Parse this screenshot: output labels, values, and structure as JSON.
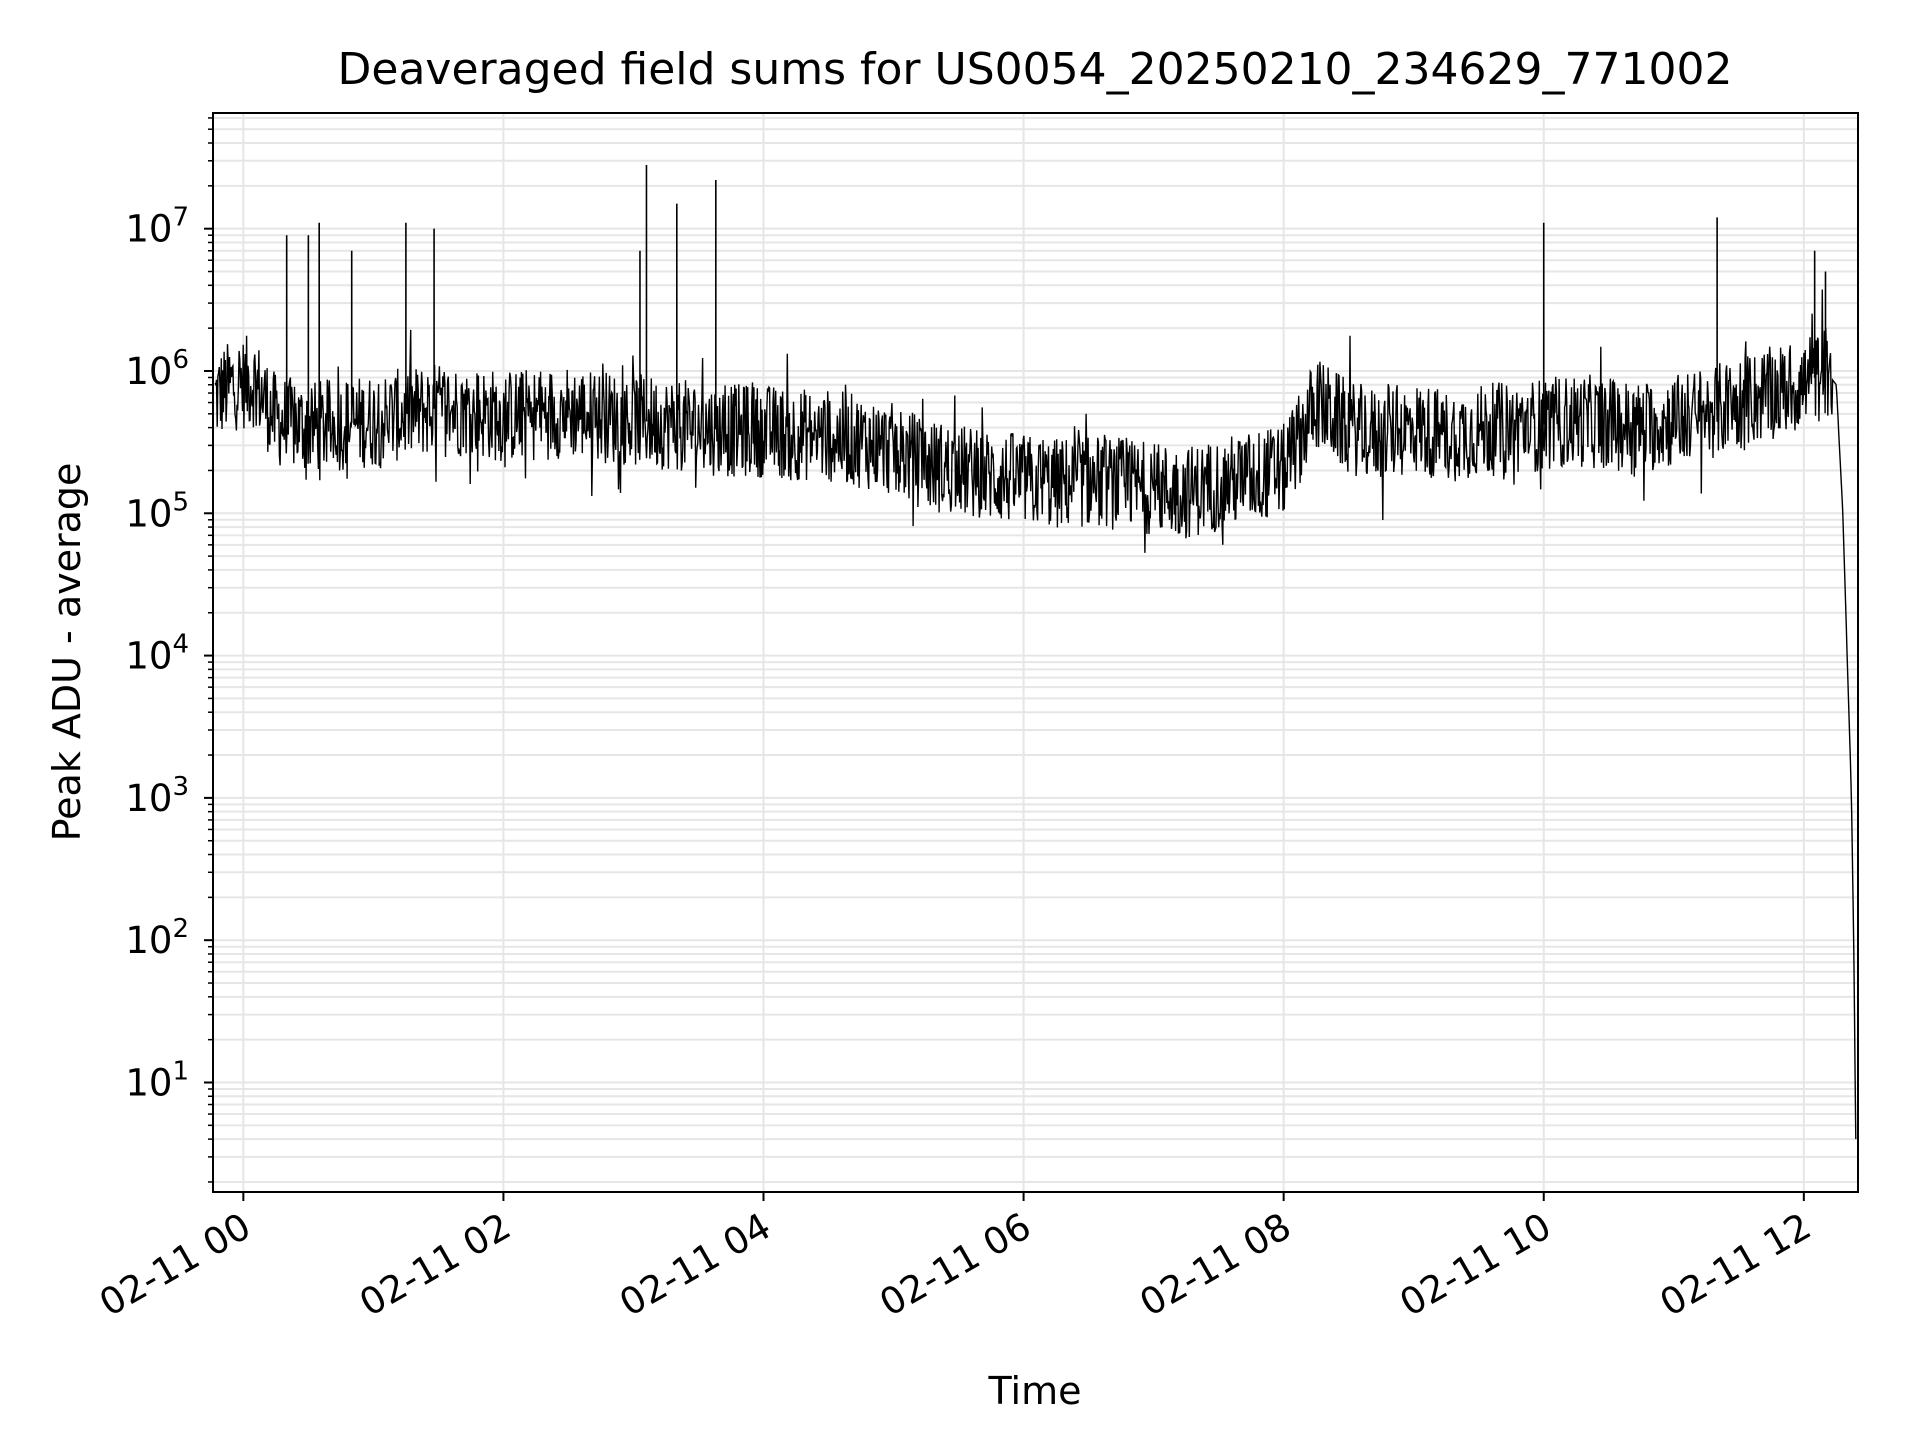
{
  "chart_data": {
    "type": "line",
    "title": "Deaveraged field sums for US0054_20250210_234629_771002",
    "xlabel": "Time",
    "ylabel": "Peak ADU - average",
    "x_type": "time",
    "xlim": [
      "2025-02-10 23:46",
      "2025-02-11 12:25"
    ],
    "ylim": [
      1.7,
      65000000
    ],
    "y_scale": "log",
    "grid": true,
    "grid_minor": true,
    "line_color": "#000000",
    "grid_color": "#e6e6e6",
    "x_ticks": [
      {
        "t": "2025-02-11 00:00",
        "label": "02-11 00"
      },
      {
        "t": "2025-02-11 02:00",
        "label": "02-11 02"
      },
      {
        "t": "2025-02-11 04:00",
        "label": "02-11 04"
      },
      {
        "t": "2025-02-11 06:00",
        "label": "02-11 06"
      },
      {
        "t": "2025-02-11 08:00",
        "label": "02-11 08"
      },
      {
        "t": "2025-02-11 10:00",
        "label": "02-11 10"
      },
      {
        "t": "2025-02-11 12:00",
        "label": "02-11 12"
      }
    ],
    "y_ticks": [
      {
        "v": 10,
        "base": "10",
        "exp": "1"
      },
      {
        "v": 100,
        "base": "10",
        "exp": "2"
      },
      {
        "v": 1000,
        "base": "10",
        "exp": "3"
      },
      {
        "v": 10000,
        "base": "10",
        "exp": "4"
      },
      {
        "v": 100000,
        "base": "10",
        "exp": "5"
      },
      {
        "v": 1000000,
        "base": "10",
        "exp": "6"
      },
      {
        "v": 10000000,
        "base": "10",
        "exp": "7"
      }
    ],
    "series": [
      {
        "x": [
          "2025-02-10 23:47",
          "2025-02-10 23:55",
          "2025-02-11 00:05",
          "2025-02-11 00:15",
          "2025-02-11 00:30",
          "2025-02-11 00:45",
          "2025-02-11 01:00",
          "2025-02-11 01:15",
          "2025-02-11 01:30",
          "2025-02-11 01:45",
          "2025-02-11 02:00",
          "2025-02-11 02:15",
          "2025-02-11 02:30",
          "2025-02-11 02:45",
          "2025-02-11 03:00",
          "2025-02-11 03:15",
          "2025-02-11 03:30",
          "2025-02-11 03:45",
          "2025-02-11 04:00",
          "2025-02-11 04:15",
          "2025-02-11 04:30",
          "2025-02-11 04:45",
          "2025-02-11 05:00",
          "2025-02-11 05:15",
          "2025-02-11 05:30",
          "2025-02-11 05:45",
          "2025-02-11 06:00",
          "2025-02-11 06:15",
          "2025-02-11 06:30",
          "2025-02-11 06:45",
          "2025-02-11 07:00",
          "2025-02-11 07:15",
          "2025-02-11 07:30",
          "2025-02-11 07:45",
          "2025-02-11 08:00",
          "2025-02-11 08:15",
          "2025-02-11 08:30",
          "2025-02-11 08:45",
          "2025-02-11 09:00",
          "2025-02-11 09:15",
          "2025-02-11 09:30",
          "2025-02-11 09:45",
          "2025-02-11 10:00",
          "2025-02-11 10:15",
          "2025-02-11 10:30",
          "2025-02-11 10:45",
          "2025-02-11 11:00",
          "2025-02-11 11:15",
          "2025-02-11 11:30",
          "2025-02-11 11:45",
          "2025-02-11 12:00",
          "2025-02-11 12:10",
          "2025-02-11 12:15",
          "2025-02-11 12:18",
          "2025-02-11 12:20",
          "2025-02-11 12:22",
          "2025-02-11 12:23",
          "2025-02-11 12:24"
        ],
        "values": [
          650000,
          800000,
          850000,
          450000,
          400000,
          420000,
          450000,
          500000,
          550000,
          520000,
          480000,
          500000,
          520000,
          480000,
          450000,
          430000,
          400000,
          380000,
          380000,
          360000,
          350000,
          320000,
          280000,
          220000,
          200000,
          180000,
          170000,
          160000,
          170000,
          160000,
          150000,
          140000,
          160000,
          180000,
          200000,
          600000,
          400000,
          350000,
          400000,
          350000,
          380000,
          400000,
          420000,
          450000,
          430000,
          400000,
          450000,
          500000,
          600000,
          700000,
          800000,
          1000000,
          800000,
          100000,
          10000,
          1000,
          100,
          4
        ]
      }
    ],
    "spikes": [
      {
        "x": "2025-02-11 00:20",
        "y": 9000000
      },
      {
        "x": "2025-02-11 00:30",
        "y": 9000000
      },
      {
        "x": "2025-02-11 00:35",
        "y": 11000000
      },
      {
        "x": "2025-02-11 00:50",
        "y": 7000000
      },
      {
        "x": "2025-02-11 01:15",
        "y": 11000000
      },
      {
        "x": "2025-02-11 01:28",
        "y": 10000000
      },
      {
        "x": "2025-02-11 03:06",
        "y": 28000000
      },
      {
        "x": "2025-02-11 03:03",
        "y": 7000000
      },
      {
        "x": "2025-02-11 03:20",
        "y": 15000000
      },
      {
        "x": "2025-02-11 03:38",
        "y": 22000000
      },
      {
        "x": "2025-02-11 10:00",
        "y": 11000000
      },
      {
        "x": "2025-02-11 11:20",
        "y": 12000000
      },
      {
        "x": "2025-02-11 12:05",
        "y": 7000000
      },
      {
        "x": "2025-02-11 12:10",
        "y": 5000000
      }
    ]
  }
}
